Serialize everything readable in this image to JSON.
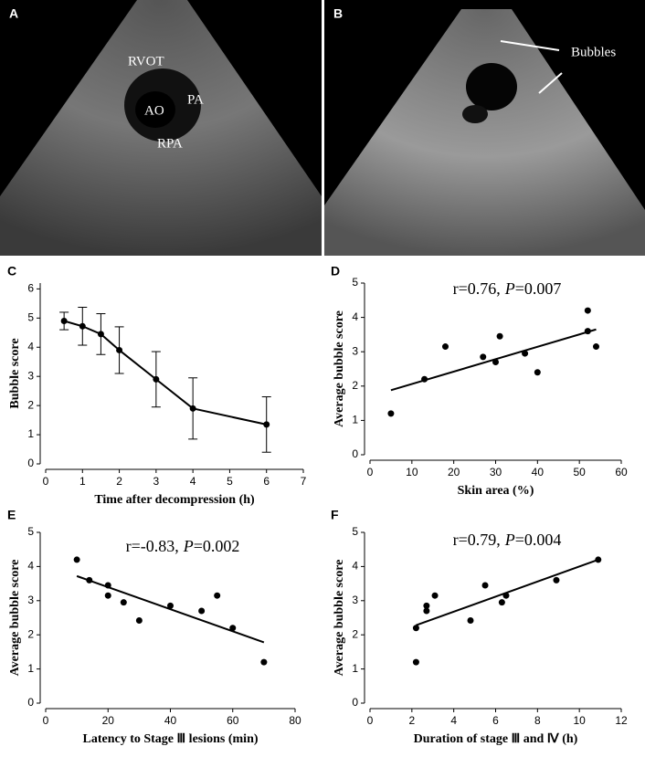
{
  "images": [
    {
      "letter": "A",
      "labels": [
        "RVOT",
        "AO",
        "PA",
        "RPA"
      ]
    },
    {
      "letter": "B",
      "labels": [
        "Bubbles"
      ]
    }
  ],
  "chart_data": [
    {
      "panel": "C",
      "type": "line",
      "x_label": "Time after decompression (h)",
      "y_label": "Bubble score",
      "x": [
        0.5,
        1,
        1.5,
        2,
        3,
        4,
        6
      ],
      "series": [
        {
          "color": "#000000",
          "values": [
            4.9,
            4.72,
            4.45,
            3.9,
            2.9,
            1.9,
            1.35
          ],
          "errors": [
            0.3,
            0.65,
            0.7,
            0.8,
            0.95,
            1.05,
            0.95
          ]
        }
      ],
      "xlim": [
        0,
        7
      ],
      "xticks": [
        0,
        1,
        2,
        3,
        4,
        5,
        6,
        7
      ],
      "ylim": [
        0,
        6.2
      ],
      "yticks": [
        0,
        1,
        2,
        3,
        4,
        5,
        6
      ]
    },
    {
      "panel": "D",
      "type": "scatter",
      "x_label": "Skin area (%)",
      "y_label": "Average bubble score",
      "annotation": [
        "r=0.76,",
        "P",
        "=0.007"
      ],
      "x": [
        5,
        13,
        18,
        27,
        30,
        31,
        37,
        40,
        52,
        52,
        54
      ],
      "values": [
        1.2,
        2.2,
        3.15,
        2.85,
        2.7,
        3.45,
        2.95,
        2.4,
        4.2,
        3.6,
        3.15
      ],
      "fit": {
        "x": [
          5,
          54
        ],
        "values": [
          1.88,
          3.65
        ]
      },
      "xlim": [
        0,
        60
      ],
      "xticks": [
        0,
        10,
        20,
        30,
        40,
        50,
        60
      ],
      "ylim": [
        0,
        5
      ],
      "yticks": [
        0,
        1,
        2,
        3,
        4,
        5
      ]
    },
    {
      "panel": "E",
      "type": "scatter",
      "x_label": "Latency to Stage Ⅲ lesions (min)",
      "y_label": "Average bubble score",
      "annotation": [
        "r=-0.83,",
        "P",
        "=0.002"
      ],
      "x": [
        10,
        14,
        20,
        20,
        25,
        30,
        40,
        50,
        55,
        60,
        70
      ],
      "values": [
        4.2,
        3.6,
        3.45,
        3.15,
        2.95,
        2.42,
        2.85,
        2.7,
        3.15,
        2.2,
        1.2
      ],
      "fit": {
        "x": [
          10,
          70
        ],
        "values": [
          3.72,
          1.78
        ]
      },
      "xlim": [
        0,
        80
      ],
      "xticks": [
        0,
        20,
        40,
        60,
        80
      ],
      "ylim": [
        0,
        5
      ],
      "yticks": [
        0,
        1,
        2,
        3,
        4,
        5
      ]
    },
    {
      "panel": "F",
      "type": "scatter",
      "x_label": "Duration of stage Ⅲ and Ⅳ (h)",
      "y_label": "Average bubble score",
      "annotation": [
        "r=0.79,",
        "P",
        "=0.004"
      ],
      "x": [
        2.2,
        2.2,
        2.7,
        2.7,
        3.1,
        4.8,
        5.5,
        6.3,
        6.5,
        8.9,
        10.9
      ],
      "values": [
        2.2,
        1.2,
        2.85,
        2.7,
        3.15,
        2.42,
        3.45,
        2.95,
        3.15,
        3.6,
        4.2
      ],
      "fit": {
        "x": [
          2.2,
          10.9
        ],
        "values": [
          2.28,
          4.2
        ]
      },
      "xlim": [
        0,
        12
      ],
      "xticks": [
        0,
        2,
        4,
        6,
        8,
        10,
        12
      ],
      "ylim": [
        0,
        5
      ],
      "yticks": [
        0,
        1,
        2,
        3,
        4,
        5
      ]
    }
  ]
}
